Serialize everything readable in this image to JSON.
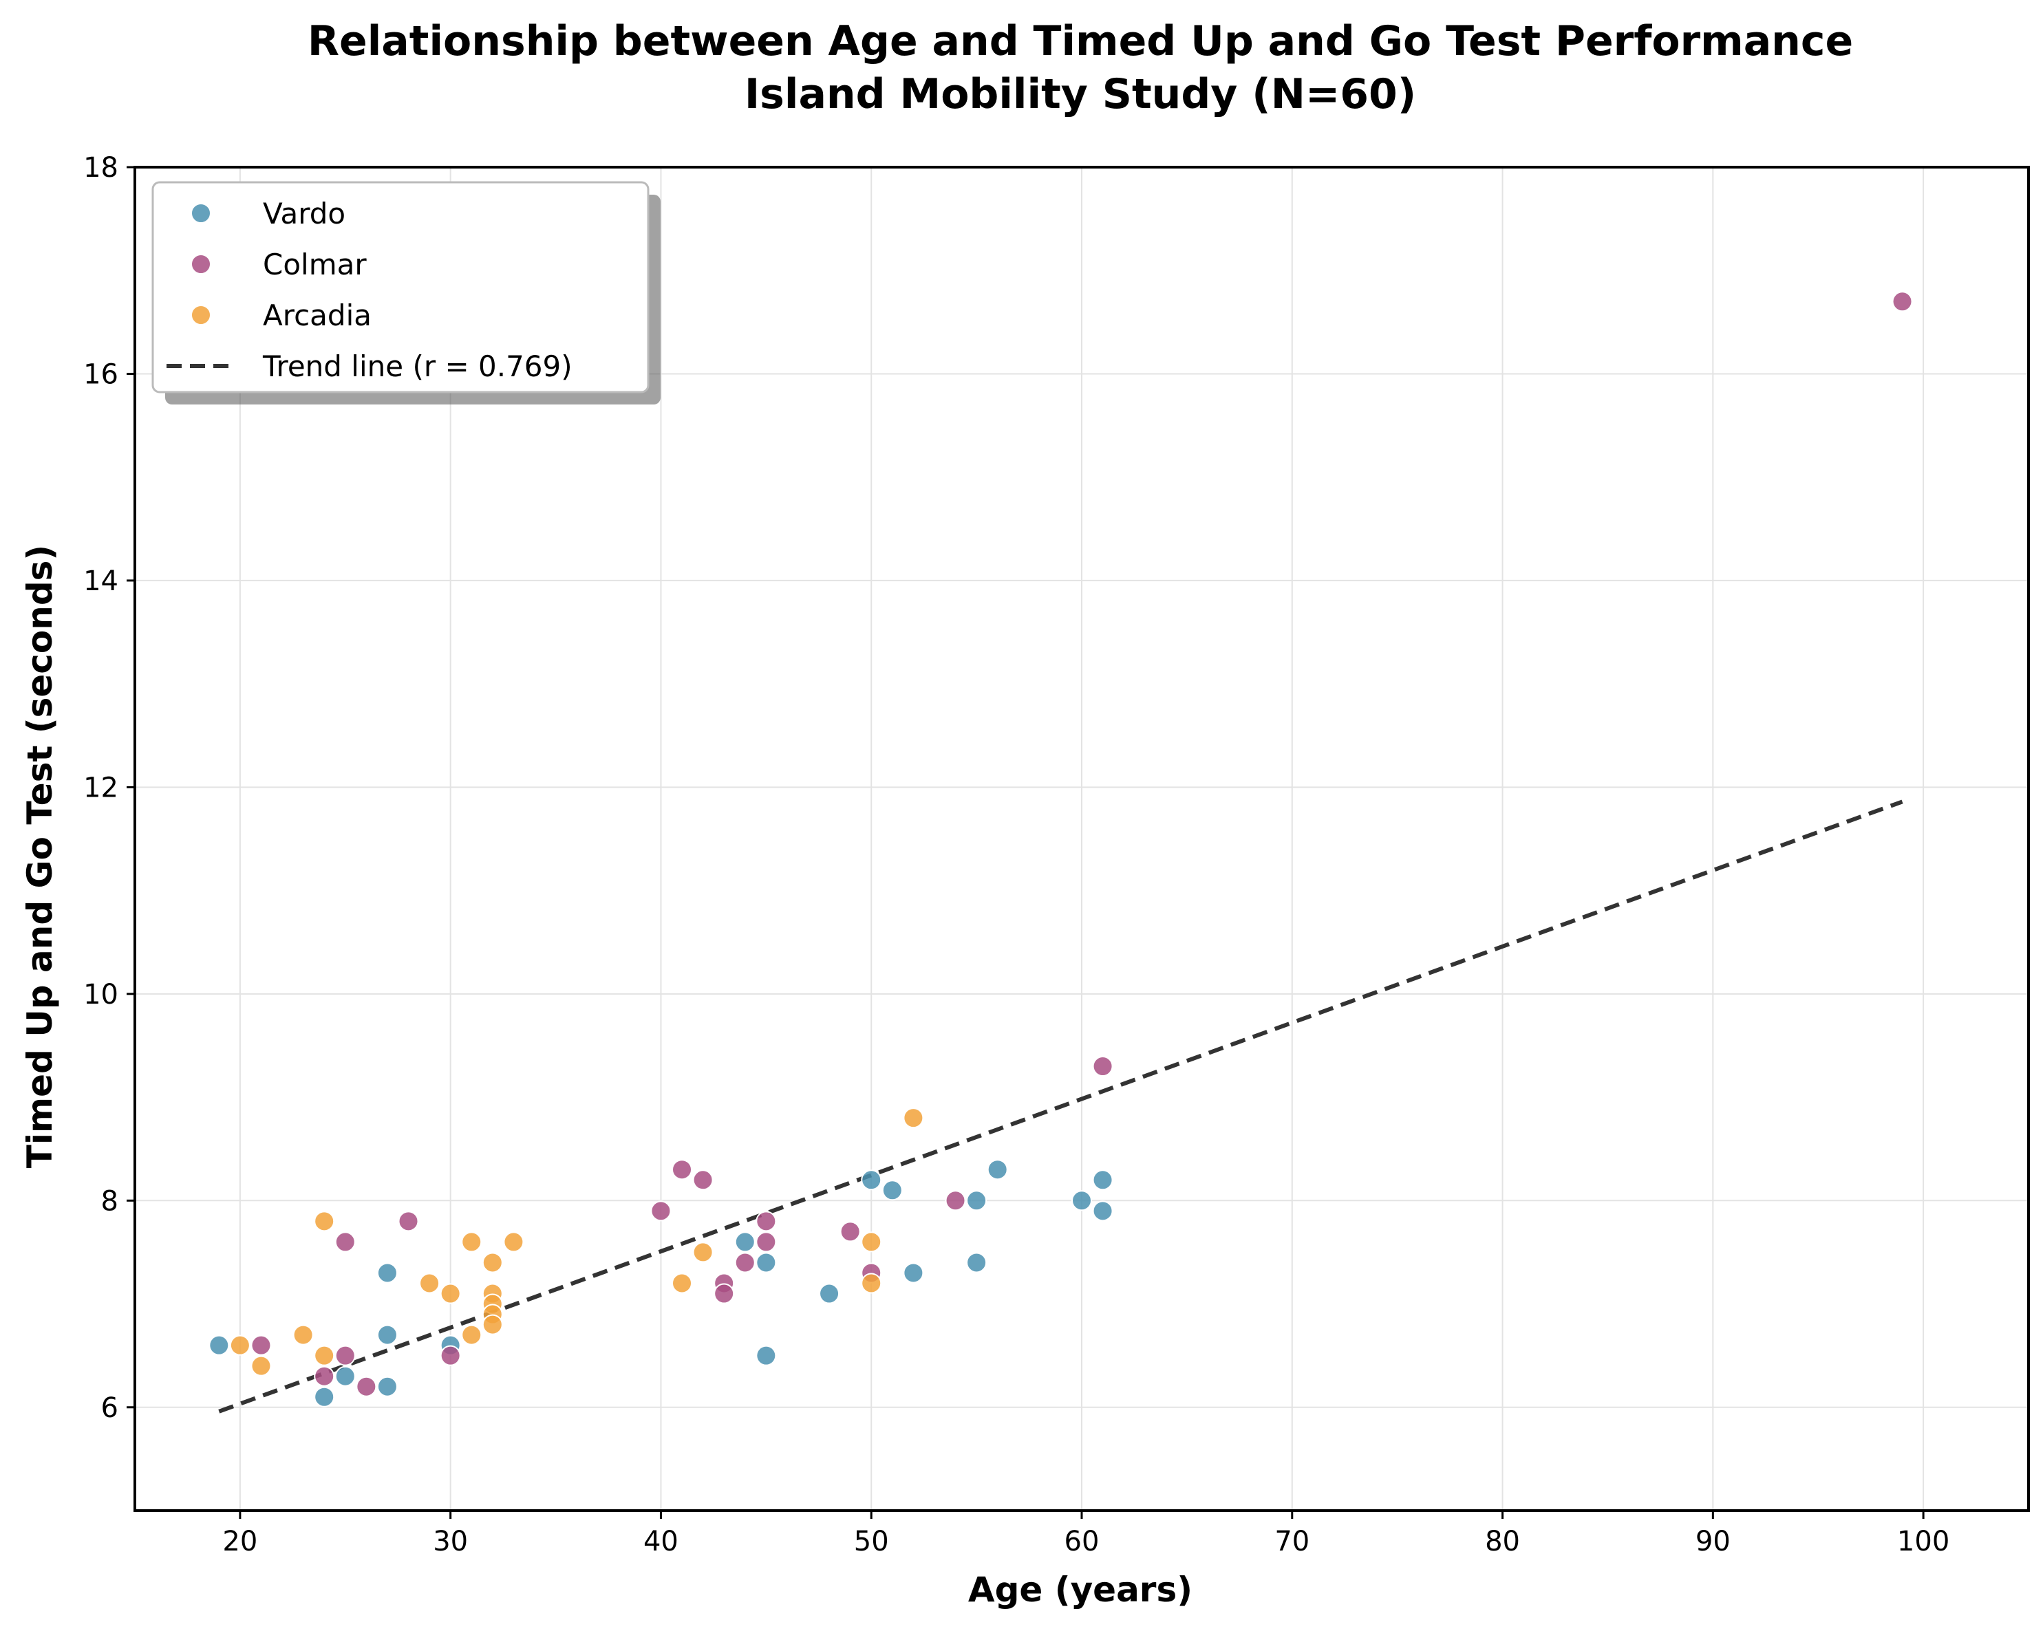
{
  "chart_data": {
    "type": "scatter",
    "title": "Relationship between Age and Timed Up and Go Test Performance",
    "subtitle": "Island Mobility Study (N=60)",
    "xlabel": "Age (years)",
    "ylabel": "Timed Up and Go Test (seconds)",
    "xlim": [
      15,
      105
    ],
    "ylim": [
      5,
      18
    ],
    "x_ticks": [
      20,
      30,
      40,
      50,
      60,
      70,
      80,
      90,
      100
    ],
    "y_ticks": [
      6,
      8,
      10,
      12,
      14,
      16,
      18
    ],
    "grid": true,
    "legend_position": "top-left",
    "series": [
      {
        "name": "Vardo",
        "color": "#4A90B0",
        "points": [
          [
            19,
            6.6
          ],
          [
            24,
            6.1
          ],
          [
            25,
            6.3
          ],
          [
            27,
            7.3
          ],
          [
            27,
            6.7
          ],
          [
            27,
            6.2
          ],
          [
            30,
            6.6
          ],
          [
            44,
            7.6
          ],
          [
            45,
            7.4
          ],
          [
            45,
            6.5
          ],
          [
            48,
            7.1
          ],
          [
            50,
            8.2
          ],
          [
            51,
            8.1
          ],
          [
            52,
            7.3
          ],
          [
            55,
            8.0
          ],
          [
            55,
            7.4
          ],
          [
            56,
            8.3
          ],
          [
            60,
            8.0
          ],
          [
            61,
            8.2
          ],
          [
            61,
            7.9
          ]
        ]
      },
      {
        "name": "Colmar",
        "color": "#A84E82",
        "points": [
          [
            21,
            6.6
          ],
          [
            24,
            6.3
          ],
          [
            25,
            7.6
          ],
          [
            25,
            6.5
          ],
          [
            26,
            6.2
          ],
          [
            28,
            7.8
          ],
          [
            30,
            6.5
          ],
          [
            40,
            7.9
          ],
          [
            41,
            8.3
          ],
          [
            42,
            8.2
          ],
          [
            43,
            7.2
          ],
          [
            43,
            7.1
          ],
          [
            44,
            7.4
          ],
          [
            45,
            7.8
          ],
          [
            45,
            7.6
          ],
          [
            49,
            7.7
          ],
          [
            50,
            7.3
          ],
          [
            54,
            8.0
          ],
          [
            61,
            9.3
          ],
          [
            99,
            16.7
          ]
        ]
      },
      {
        "name": "Arcadia",
        "color": "#F2A23A",
        "points": [
          [
            20,
            6.6
          ],
          [
            21,
            6.4
          ],
          [
            23,
            6.7
          ],
          [
            24,
            7.8
          ],
          [
            24,
            6.5
          ],
          [
            29,
            7.2
          ],
          [
            30,
            7.1
          ],
          [
            31,
            7.6
          ],
          [
            31,
            6.7
          ],
          [
            32,
            7.4
          ],
          [
            32,
            7.1
          ],
          [
            32,
            7.0
          ],
          [
            32,
            6.9
          ],
          [
            32,
            6.8
          ],
          [
            33,
            7.6
          ],
          [
            41,
            7.2
          ],
          [
            42,
            7.5
          ],
          [
            50,
            7.6
          ],
          [
            50,
            7.2
          ],
          [
            52,
            8.8
          ]
        ]
      }
    ],
    "trend_line": {
      "name": "Trend line (r = 0.769)",
      "color": "#333333",
      "x": [
        19,
        99
      ],
      "y": [
        5.96,
        11.86
      ]
    }
  }
}
